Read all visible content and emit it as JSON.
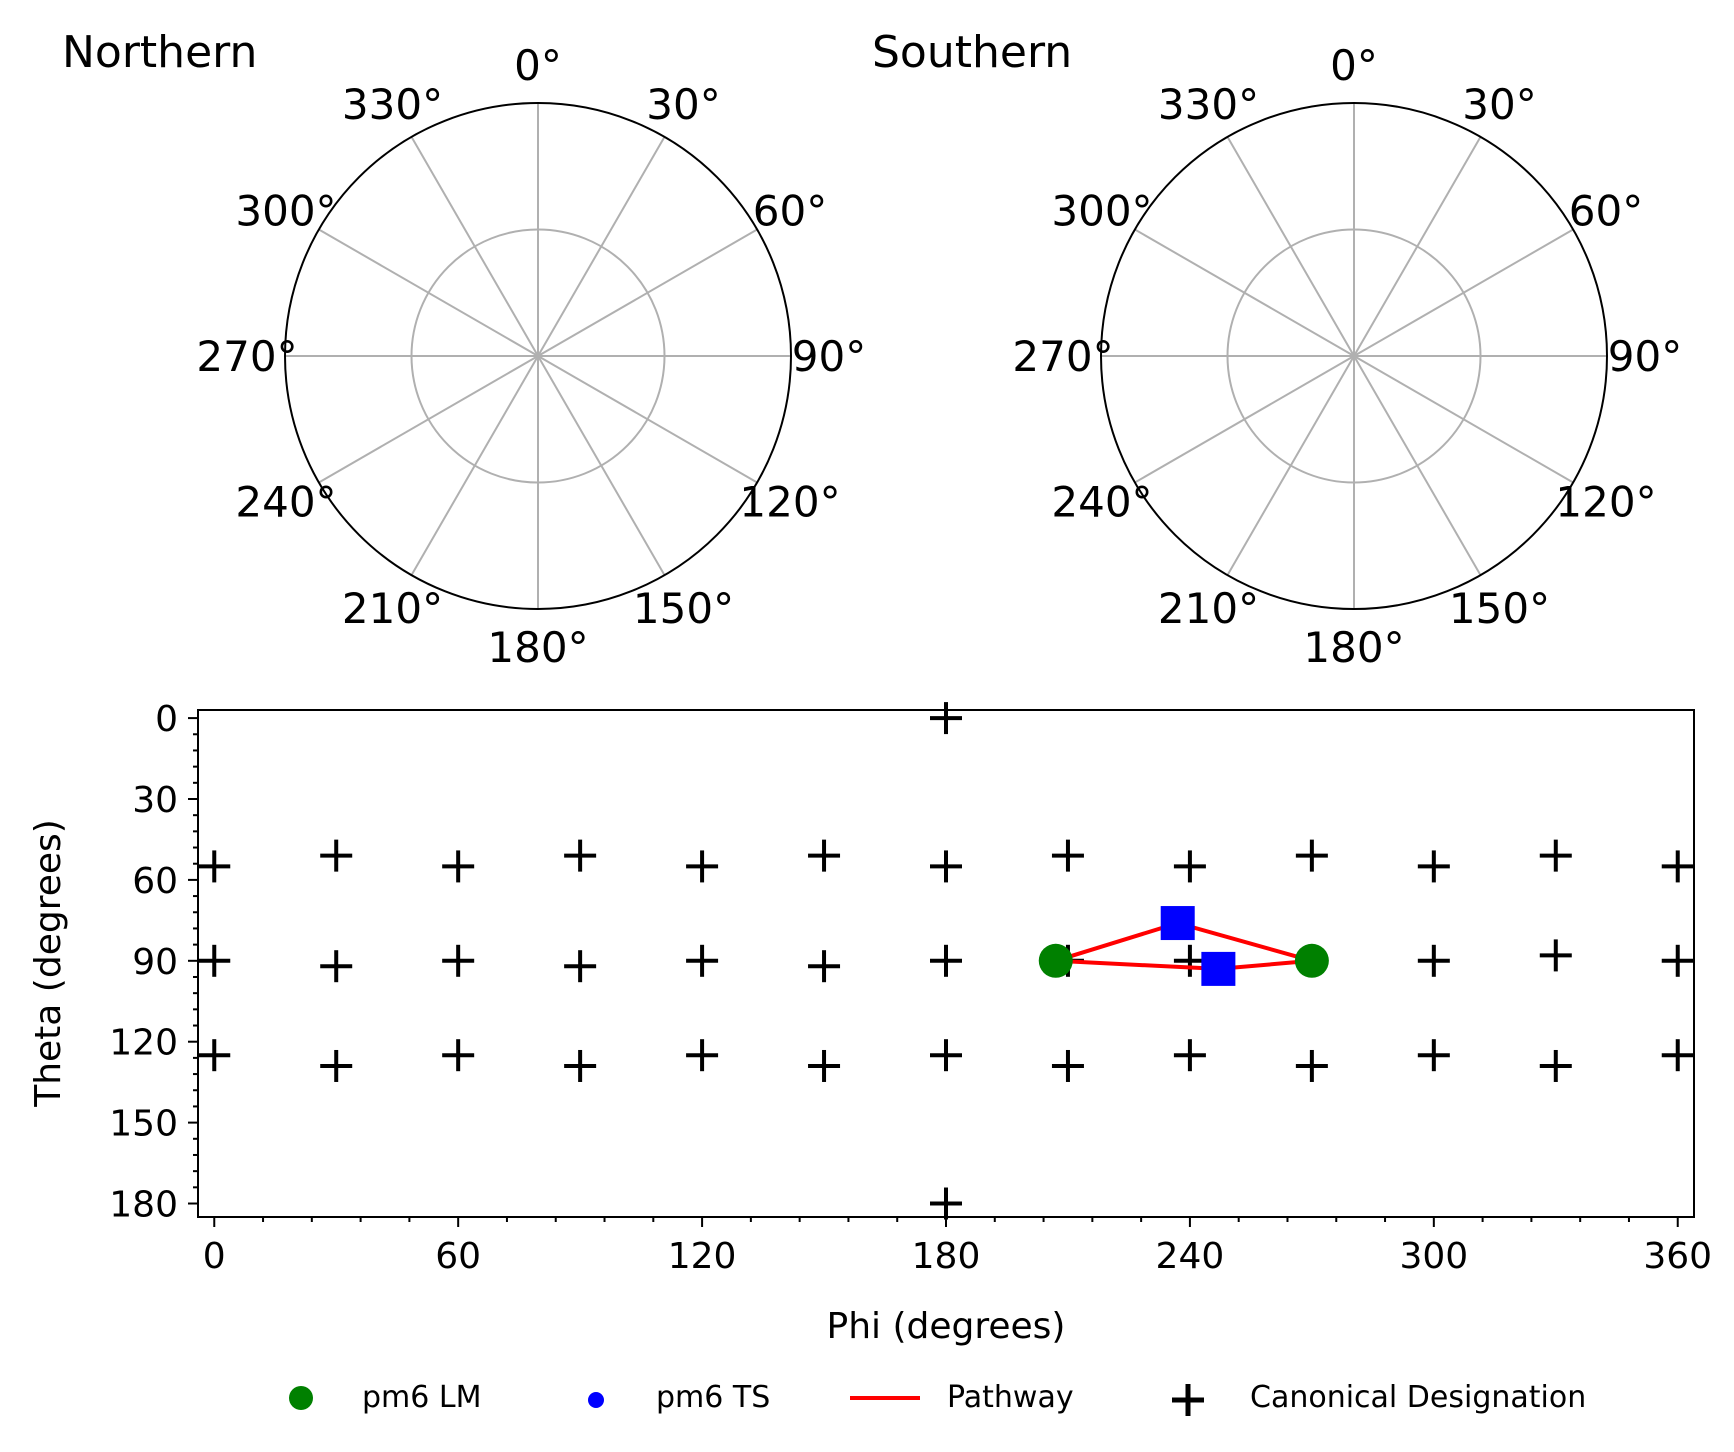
{
  "figure": {
    "polar_plots": [
      {
        "id": "northern",
        "title": "Northern",
        "angle_labels": [
          "0°",
          "30°",
          "60°",
          "90°",
          "120°",
          "150°",
          "180°",
          "210°",
          "240°",
          "270°",
          "300°",
          "330°"
        ]
      },
      {
        "id": "southern",
        "title": "Southern",
        "angle_labels": [
          "0°",
          "30°",
          "60°",
          "90°",
          "120°",
          "150°",
          "180°",
          "210°",
          "240°",
          "270°",
          "300°",
          "330°"
        ]
      }
    ]
  },
  "chart_data": {
    "type": "scatter",
    "xlabel": "Phi (degrees)",
    "ylabel": "Theta (degrees)",
    "xlim": [
      -4,
      364
    ],
    "ylim": [
      185,
      -3
    ],
    "y_inverted": true,
    "xticks": [
      0,
      60,
      120,
      180,
      240,
      300,
      360
    ],
    "yticks": [
      0,
      30,
      60,
      90,
      120,
      150,
      180
    ],
    "xtick_labels": [
      "0",
      "60",
      "120",
      "180",
      "240",
      "300",
      "360"
    ],
    "ytick_labels": [
      "0",
      "30",
      "60",
      "90",
      "120",
      "150",
      "180"
    ],
    "x_minor_step": 12,
    "y_minor_step": 6,
    "grid": false,
    "legend": {
      "placement": "bottom",
      "entries": [
        "pm6 LM",
        "pm6 TS",
        "Pathway",
        "Canonical Designation"
      ]
    },
    "series": [
      {
        "name": "pm6 LM",
        "kind": "scatter",
        "marker": "circle",
        "color": "#008000",
        "points": [
          [
            207,
            90
          ],
          [
            270,
            90
          ]
        ]
      },
      {
        "name": "pm6 TS",
        "kind": "scatter",
        "marker": "square",
        "color": "#0000ff",
        "points": [
          [
            237,
            76
          ],
          [
            247,
            93
          ]
        ]
      },
      {
        "name": "Pathway",
        "kind": "line",
        "color": "#ff0000",
        "paths": [
          [
            [
              207,
              90
            ],
            [
              237,
              76
            ],
            [
              270,
              90
            ]
          ],
          [
            [
              207,
              90
            ],
            [
              247,
              93
            ],
            [
              270,
              90
            ]
          ]
        ]
      },
      {
        "name": "Canonical Designation",
        "kind": "scatter",
        "marker": "plus",
        "color": "#000000",
        "points": [
          [
            180,
            0
          ],
          [
            0,
            55
          ],
          [
            30,
            51
          ],
          [
            60,
            55
          ],
          [
            90,
            51
          ],
          [
            120,
            55
          ],
          [
            150,
            51
          ],
          [
            180,
            55
          ],
          [
            210,
            51
          ],
          [
            240,
            55
          ],
          [
            270,
            51
          ],
          [
            300,
            55
          ],
          [
            330,
            51
          ],
          [
            360,
            55
          ],
          [
            0,
            90
          ],
          [
            30,
            92
          ],
          [
            60,
            90
          ],
          [
            90,
            92
          ],
          [
            120,
            90
          ],
          [
            150,
            92
          ],
          [
            180,
            90
          ],
          [
            210,
            90
          ],
          [
            240,
            90
          ],
          [
            270,
            90
          ],
          [
            300,
            90
          ],
          [
            330,
            88
          ],
          [
            360,
            90
          ],
          [
            0,
            125
          ],
          [
            30,
            129
          ],
          [
            60,
            125
          ],
          [
            90,
            129
          ],
          [
            120,
            125
          ],
          [
            150,
            129
          ],
          [
            180,
            125
          ],
          [
            210,
            129
          ],
          [
            240,
            125
          ],
          [
            270,
            129
          ],
          [
            300,
            125
          ],
          [
            330,
            129
          ],
          [
            360,
            125
          ],
          [
            180,
            180
          ]
        ]
      }
    ]
  }
}
